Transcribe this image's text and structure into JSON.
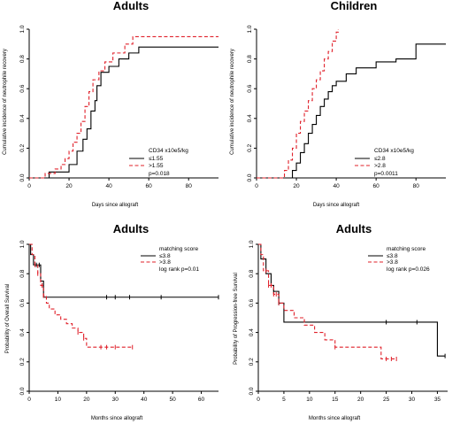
{
  "figure": {
    "panels": [
      {
        "id": "A",
        "title": "Adults",
        "xlabel": "Days since allograft",
        "ylabel": "Cumulative incidence of neutrophile recovery",
        "legend_title": "CD34 x10e5/kg",
        "legend": [
          "≤1.55",
          ">1.55"
        ],
        "pvalue": "p=0.018"
      },
      {
        "id": "B",
        "title": "Children",
        "xlabel": "Days since allograft",
        "ylabel": "Cumulative incidence of neutrophile recovery",
        "legend_title": "CD34 x10e5/kg",
        "legend": [
          "≤2.8",
          ">2.8"
        ],
        "pvalue": "p=0.0011"
      },
      {
        "id": "C",
        "title": "Adults",
        "xlabel": "Months since allograft",
        "ylabel": "Probability of Overall Survival",
        "legend_title": "matching score",
        "legend": [
          "≤3.8",
          ">3.8"
        ],
        "pvalue": "log rank p=0.01"
      },
      {
        "id": "D",
        "title": "Adults",
        "xlabel": "Months since allograft",
        "ylabel": "Probability of Progression-free Survival",
        "legend_title": "matching score",
        "legend": [
          "≤3.8",
          ">3.8"
        ],
        "pvalue": "log rank p=0.026"
      }
    ]
  },
  "chart_data": [
    {
      "type": "line",
      "title": "Adults",
      "xlabel": "Days since allograft",
      "ylabel": "Cumulative incidence of neutrophile recovery",
      "xlim": [
        0,
        95
      ],
      "ylim": [
        0,
        1
      ],
      "xticks": [
        0,
        20,
        40,
        60,
        80
      ],
      "yticks": [
        0.0,
        0.2,
        0.4,
        0.6,
        0.8,
        1.0
      ],
      "legend_title": "CD34 x10e5/kg",
      "series": [
        {
          "name": "≤1.55",
          "color": "#000000",
          "style": "solid",
          "step": true,
          "x": [
            0,
            10,
            20,
            24,
            27,
            29,
            31,
            33,
            34,
            36,
            40,
            45,
            50,
            55,
            60,
            95
          ],
          "y": [
            0,
            0.04,
            0.09,
            0.18,
            0.26,
            0.33,
            0.45,
            0.52,
            0.62,
            0.71,
            0.75,
            0.8,
            0.84,
            0.88,
            0.88,
            0.88
          ]
        },
        {
          "name": ">1.55",
          "color": "#e0202a",
          "style": "dashed",
          "step": true,
          "x": [
            0,
            8,
            13,
            16,
            18,
            20,
            22,
            24,
            26,
            28,
            30,
            32,
            35,
            38,
            42,
            48,
            52,
            95
          ],
          "y": [
            0,
            0.03,
            0.06,
            0.09,
            0.13,
            0.18,
            0.24,
            0.3,
            0.38,
            0.48,
            0.58,
            0.66,
            0.72,
            0.78,
            0.84,
            0.9,
            0.95,
            0.95
          ]
        }
      ],
      "annotation": "p=0.018"
    },
    {
      "type": "line",
      "title": "Children",
      "xlabel": "Days since allograft",
      "ylabel": "Cumulative incidence of neutrophile recovery",
      "xlim": [
        0,
        95
      ],
      "ylim": [
        0,
        1
      ],
      "xticks": [
        0,
        20,
        40,
        60,
        80
      ],
      "yticks": [
        0.0,
        0.2,
        0.4,
        0.6,
        0.8,
        1.0
      ],
      "legend_title": "CD34 x10e5/kg",
      "series": [
        {
          "name": "≤2.8",
          "color": "#000000",
          "style": "solid",
          "step": true,
          "x": [
            0,
            18,
            20,
            22,
            24,
            26,
            28,
            30,
            32,
            34,
            36,
            38,
            40,
            45,
            50,
            60,
            70,
            80,
            95
          ],
          "y": [
            0,
            0.05,
            0.1,
            0.17,
            0.23,
            0.3,
            0.36,
            0.42,
            0.48,
            0.53,
            0.58,
            0.62,
            0.65,
            0.7,
            0.74,
            0.78,
            0.8,
            0.9,
            0.9
          ]
        },
        {
          "name": ">2.8",
          "color": "#e0202a",
          "style": "dashed",
          "step": true,
          "x": [
            0,
            14,
            16,
            18,
            20,
            22,
            24,
            26,
            28,
            30,
            32,
            34,
            36,
            38,
            40,
            41
          ],
          "y": [
            0,
            0.05,
            0.12,
            0.2,
            0.3,
            0.38,
            0.45,
            0.52,
            0.6,
            0.66,
            0.72,
            0.8,
            0.85,
            0.92,
            0.98,
            1.0
          ]
        }
      ],
      "annotation": "p=0.0011"
    },
    {
      "type": "line",
      "title": "Adults",
      "xlabel": "Months since allograft",
      "ylabel": "Probability of Overall Survival",
      "xlim": [
        0,
        66
      ],
      "ylim": [
        0,
        1
      ],
      "xticks": [
        0,
        10,
        20,
        30,
        40,
        50,
        60
      ],
      "yticks": [
        0.0,
        0.2,
        0.4,
        0.6,
        0.8,
        1.0
      ],
      "legend_title": "matching score",
      "series": [
        {
          "name": "≤3.8",
          "color": "#000000",
          "style": "solid",
          "step": true,
          "x": [
            0,
            0.5,
            1.5,
            3,
            4,
            5,
            66
          ],
          "y": [
            1.0,
            0.93,
            0.86,
            0.86,
            0.75,
            0.64,
            0.64
          ],
          "censored_x": [
            2.5,
            3.5,
            27,
            30,
            35,
            46,
            66
          ]
        },
        {
          "name": ">3.8",
          "color": "#e0202a",
          "style": "dashed",
          "step": true,
          "x": [
            0,
            1,
            2,
            3,
            4,
            5,
            6,
            7,
            9,
            11,
            13,
            15,
            17,
            19,
            20,
            36
          ],
          "y": [
            1.0,
            0.93,
            0.86,
            0.8,
            0.72,
            0.65,
            0.6,
            0.56,
            0.52,
            0.49,
            0.46,
            0.43,
            0.4,
            0.36,
            0.3,
            0.3
          ],
          "censored_x": [
            2,
            3,
            4.5,
            5,
            17,
            19,
            25,
            27,
            30,
            36
          ]
        }
      ],
      "annotation": "log rank p=0.01"
    },
    {
      "type": "line",
      "title": "Adults",
      "xlabel": "Months since allograft",
      "ylabel": "Probability of Progression-free Survival",
      "xlim": [
        0,
        37
      ],
      "ylim": [
        0,
        1
      ],
      "xticks": [
        0,
        5,
        10,
        15,
        20,
        25,
        30,
        35
      ],
      "yticks": [
        0.0,
        0.2,
        0.4,
        0.6,
        0.8,
        1.0
      ],
      "legend_title": "matching score",
      "series": [
        {
          "name": "≤3.8",
          "color": "#000000",
          "style": "solid",
          "step": true,
          "x": [
            0,
            0.5,
            1.5,
            2.5,
            3,
            4,
            5,
            35,
            36.5
          ],
          "y": [
            1.0,
            0.9,
            0.8,
            0.72,
            0.68,
            0.6,
            0.47,
            0.24,
            0.24
          ],
          "censored_x": [
            3,
            4,
            25,
            31,
            36.5
          ]
        },
        {
          "name": ">3.8",
          "color": "#e0202a",
          "style": "dashed",
          "step": true,
          "x": [
            0,
            0.5,
            1,
            2,
            3,
            4,
            5,
            7,
            9,
            11,
            13,
            15,
            24,
            27
          ],
          "y": [
            1.0,
            0.93,
            0.82,
            0.72,
            0.66,
            0.6,
            0.55,
            0.5,
            0.45,
            0.4,
            0.35,
            0.3,
            0.22,
            0.22
          ],
          "censored_x": [
            1.5,
            2,
            2.5,
            3,
            3.5,
            4,
            15,
            25,
            26,
            27
          ]
        }
      ],
      "annotation": "log rank p=0.026"
    }
  ]
}
